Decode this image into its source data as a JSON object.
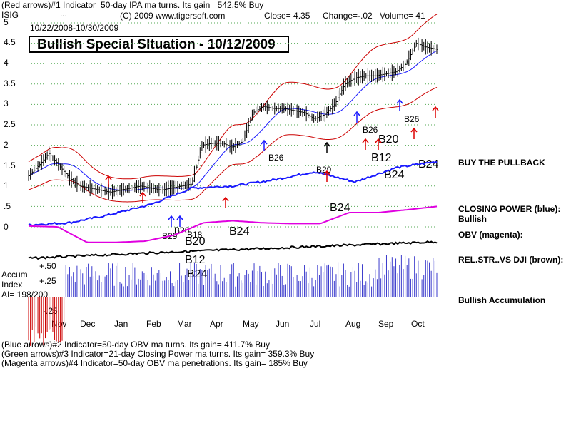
{
  "header": {
    "line1": "(Red arrows)#1 Indicator=50-day IPA ma turns. Its gain= 542.5% Buy",
    "ticker": "ISIG",
    "dots": "...",
    "copyright": "(C) 2009 www.tigersoft.com",
    "close": "Close=  4.35",
    "change": "Change=-.02",
    "volume": "Volume= 41",
    "date_range": "10/22/2008-10/30/2009"
  },
  "title": "Bullish Special SItuation - 10/12/2009",
  "y_axis_labels": [
    "5",
    "4.5",
    "4",
    "3.5",
    "3",
    "2.5",
    "2",
    "1.5",
    "1",
    ".5",
    "0"
  ],
  "month_labels": [
    "Nov",
    "Dec",
    "Jan",
    "Feb",
    "Mar",
    "Apr",
    "May",
    "Jun",
    "Jul",
    "Aug",
    "Sep",
    "Oct"
  ],
  "right_labels": {
    "pullback": "BUY THE PULLBACK",
    "closing_power": "CLOSING POWER (blue):",
    "bullish": "Bullish",
    "obv": "OBV (magenta):",
    "relstr": "REL.STR..VS DJI (brown):",
    "accum_note": "Bullish Accumulation"
  },
  "accum_panel": {
    "title1": "Accum",
    "title2": "Index",
    "ai": "AI= 198/200",
    "p50": "+.50",
    "p25": "+.25",
    "m25": "-.25"
  },
  "signals": [
    "B26",
    "B29",
    "B24",
    "B12",
    "B20",
    "B24",
    "B24",
    "B29",
    "B26",
    "B18",
    "B24",
    "B20",
    "B12",
    "B24",
    "B26"
  ],
  "footer": {
    "line1": "(Blue arrows)#2 Indicator=50-day OBV ma turns. Its gain= 411.7% Buy",
    "line2": "(Green arrows)#3 Indicator=21-day Closing Power ma turns. Its gain= 359.3% Buy",
    "line3": "(Magenta arrows)#4 Indicator=50-day OBV ma penetrations. Its gain= 185% Buy"
  },
  "colors": {
    "price": "#000000",
    "bands": "#cc0000",
    "ma": "#1a1aff",
    "closing_power": "#1a1aff",
    "obv": "#e000e0",
    "relstr": "#000000",
    "accum_pos": "#3a3acc",
    "accum_neg": "#cc0000",
    "grid": "#55aa55",
    "arrow_red": "#dd0000",
    "arrow_blue": "#1a1aff"
  },
  "chart_data": {
    "type": "line",
    "x_range": [
      "10/22/2008",
      "10/30/2009"
    ],
    "ylim": [
      0,
      5
    ],
    "y_ticks": [
      0,
      0.5,
      1,
      1.5,
      2,
      2.5,
      3,
      3.5,
      4,
      4.5,
      5
    ],
    "x_ticks": [
      "Nov",
      "Dec",
      "Jan",
      "Feb",
      "Mar",
      "Apr",
      "May",
      "Jun",
      "Jul",
      "Aug",
      "Sep",
      "Oct"
    ],
    "grid": true,
    "series": [
      {
        "values": [
          1.25,
          1.5,
          1.8,
          1.5,
          1.2,
          1.0,
          0.95,
          0.9,
          0.85,
          0.9,
          0.95,
          1.0,
          0.95,
          0.9,
          0.95,
          1.0,
          1.05,
          2.0,
          2.05,
          2.05,
          1.95,
          2.1,
          2.8,
          2.95,
          2.9,
          2.9,
          2.85,
          2.8,
          2.65,
          2.75,
          3.0,
          3.5,
          3.65,
          3.7,
          3.7,
          3.75,
          3.8,
          4.0,
          4.5,
          4.4,
          4.35
        ]
      }
    ],
    "accumulation_ylim": [
      -0.25,
      0.5
    ]
  }
}
